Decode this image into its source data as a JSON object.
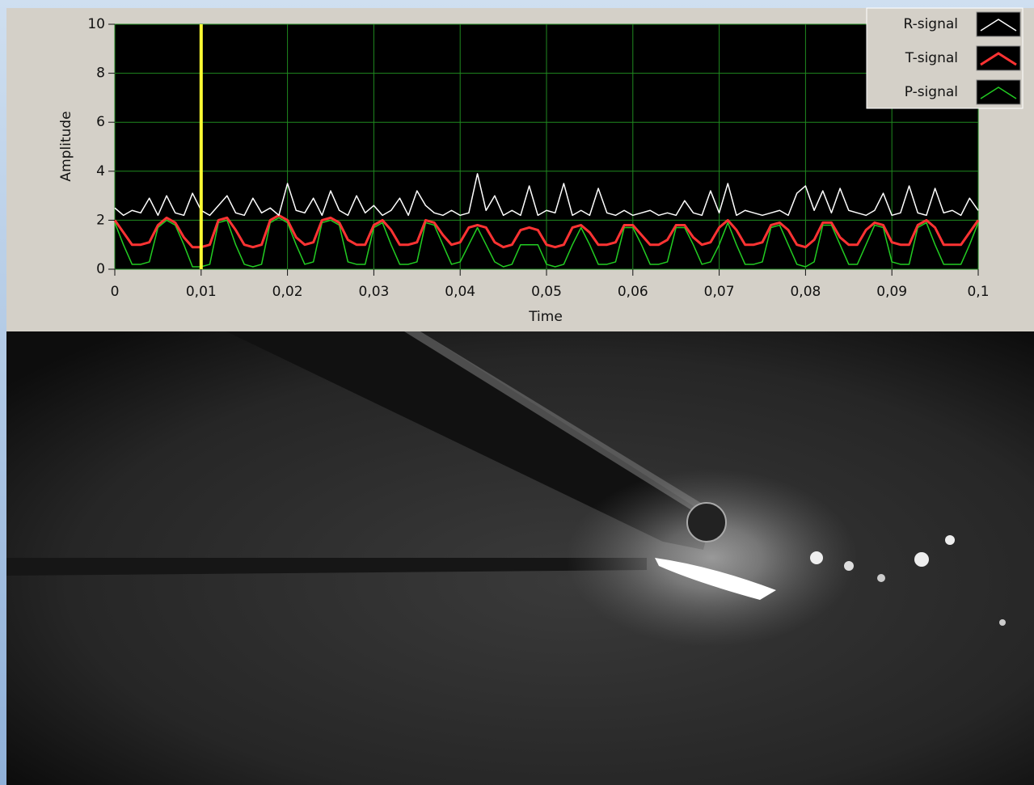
{
  "chart_data": {
    "type": "line",
    "xlabel": "Time",
    "ylabel": "Amplitude",
    "xlim": [
      0,
      0.1
    ],
    "ylim": [
      0,
      10
    ],
    "xticks": [
      0,
      {
        "value": 0.01,
        "label": "0,01"
      },
      {
        "value": 0.02,
        "label": "0,02"
      },
      {
        "value": 0.03,
        "label": "0,03"
      },
      {
        "value": 0.04,
        "label": "0,04"
      },
      {
        "value": 0.05,
        "label": "0,05"
      },
      {
        "value": 0.06,
        "label": "0,06"
      },
      {
        "value": 0.07,
        "label": "0,07"
      },
      {
        "value": 0.08,
        "label": "0,08"
      },
      {
        "value": 0.09,
        "label": "0,09"
      },
      {
        "value": 0.1,
        "label": "0,1"
      }
    ],
    "yticks": [
      0,
      2,
      4,
      6,
      8,
      10
    ],
    "grid": true,
    "background": "#000000",
    "grid_color": "#1f8a1f",
    "cursor_x": 0.01,
    "cursor_color": "#ffff33",
    "legend": "upper right",
    "x": [
      0,
      0.001,
      0.002,
      0.003,
      0.004,
      0.005,
      0.006,
      0.007,
      0.008,
      0.009,
      0.01,
      0.011,
      0.012,
      0.013,
      0.014,
      0.015,
      0.016,
      0.017,
      0.018,
      0.019,
      0.02,
      0.021,
      0.022,
      0.023,
      0.024,
      0.025,
      0.026,
      0.027,
      0.028,
      0.029,
      0.03,
      0.031,
      0.032,
      0.033,
      0.034,
      0.035,
      0.036,
      0.037,
      0.038,
      0.039,
      0.04,
      0.041,
      0.042,
      0.043,
      0.044,
      0.045,
      0.046,
      0.047,
      0.048,
      0.049,
      0.05,
      0.051,
      0.052,
      0.053,
      0.054,
      0.055,
      0.056,
      0.057,
      0.058,
      0.059,
      0.06,
      0.061,
      0.062,
      0.063,
      0.064,
      0.065,
      0.066,
      0.067,
      0.068,
      0.069,
      0.07,
      0.071,
      0.072,
      0.073,
      0.074,
      0.075,
      0.076,
      0.077,
      0.078,
      0.079,
      0.08,
      0.081,
      0.082,
      0.083,
      0.084,
      0.085,
      0.086,
      0.087,
      0.088,
      0.089,
      0.09,
      0.091,
      0.092,
      0.093,
      0.094,
      0.095,
      0.096,
      0.097,
      0.098,
      0.099,
      0.1
    ],
    "series": [
      {
        "name": "R-signal",
        "color": "#ffffff",
        "width": 1.5,
        "values": [
          2.5,
          2.2,
          2.4,
          2.3,
          2.9,
          2.2,
          3.0,
          2.3,
          2.2,
          3.1,
          2.4,
          2.2,
          2.6,
          3.0,
          2.3,
          2.2,
          2.9,
          2.3,
          2.5,
          2.2,
          3.5,
          2.4,
          2.3,
          2.9,
          2.2,
          3.2,
          2.4,
          2.2,
          3.0,
          2.3,
          2.6,
          2.2,
          2.4,
          2.9,
          2.2,
          3.2,
          2.6,
          2.3,
          2.2,
          2.4,
          2.2,
          2.3,
          3.9,
          2.4,
          3.0,
          2.2,
          2.4,
          2.2,
          3.4,
          2.2,
          2.4,
          2.3,
          3.5,
          2.2,
          2.4,
          2.2,
          3.3,
          2.3,
          2.2,
          2.4,
          2.2,
          2.3,
          2.4,
          2.2,
          2.3,
          2.2,
          2.8,
          2.3,
          2.2,
          3.2,
          2.3,
          3.5,
          2.2,
          2.4,
          2.3,
          2.2,
          2.3,
          2.4,
          2.2,
          3.1,
          3.4,
          2.4,
          3.2,
          2.3,
          3.3,
          2.4,
          2.3,
          2.2,
          2.4,
          3.1,
          2.2,
          2.3,
          3.4,
          2.3,
          2.2,
          3.3,
          2.3,
          2.4,
          2.2,
          2.9,
          2.4
        ]
      },
      {
        "name": "T-signal",
        "color": "#ff3333",
        "width": 3,
        "values": [
          2.0,
          1.5,
          1.0,
          1.0,
          1.1,
          1.8,
          2.1,
          1.9,
          1.3,
          0.9,
          0.9,
          1.0,
          2.0,
          2.1,
          1.6,
          1.0,
          0.9,
          1.0,
          2.0,
          2.2,
          2.0,
          1.3,
          1.0,
          1.1,
          2.0,
          2.1,
          1.9,
          1.2,
          1.0,
          1.0,
          1.8,
          2.0,
          1.6,
          1.0,
          1.0,
          1.1,
          2.0,
          1.9,
          1.4,
          1.0,
          1.1,
          1.7,
          1.8,
          1.7,
          1.1,
          0.9,
          1.0,
          1.6,
          1.7,
          1.6,
          1.0,
          0.9,
          1.0,
          1.7,
          1.8,
          1.5,
          1.0,
          1.0,
          1.1,
          1.8,
          1.8,
          1.4,
          1.0,
          1.0,
          1.2,
          1.8,
          1.8,
          1.3,
          1.0,
          1.1,
          1.7,
          2.0,
          1.6,
          1.0,
          1.0,
          1.1,
          1.8,
          1.9,
          1.6,
          1.0,
          0.9,
          1.2,
          1.9,
          1.9,
          1.3,
          1.0,
          1.0,
          1.6,
          1.9,
          1.8,
          1.1,
          1.0,
          1.0,
          1.8,
          2.0,
          1.7,
          1.0,
          1.0,
          1.0,
          1.5,
          2.0
        ]
      },
      {
        "name": "P-signal",
        "color": "#22cc22",
        "width": 1.5,
        "values": [
          1.9,
          1.0,
          0.2,
          0.2,
          0.3,
          1.7,
          2.0,
          1.8,
          1.0,
          0.1,
          0.1,
          0.2,
          1.9,
          2.0,
          1.0,
          0.2,
          0.1,
          0.2,
          1.9,
          2.1,
          1.9,
          1.0,
          0.2,
          0.3,
          1.9,
          2.0,
          1.8,
          0.3,
          0.2,
          0.2,
          1.7,
          1.9,
          1.0,
          0.2,
          0.2,
          0.3,
          1.9,
          1.8,
          1.0,
          0.2,
          0.3,
          1.0,
          1.7,
          1.0,
          0.3,
          0.1,
          0.2,
          1.0,
          1.0,
          1.0,
          0.2,
          0.1,
          0.2,
          1.0,
          1.7,
          1.0,
          0.2,
          0.2,
          0.3,
          1.7,
          1.7,
          1.0,
          0.2,
          0.2,
          0.3,
          1.7,
          1.7,
          1.0,
          0.2,
          0.3,
          1.0,
          1.9,
          1.0,
          0.2,
          0.2,
          0.3,
          1.7,
          1.8,
          1.0,
          0.2,
          0.1,
          0.3,
          1.8,
          1.8,
          1.0,
          0.2,
          0.2,
          1.0,
          1.8,
          1.7,
          0.3,
          0.2,
          0.2,
          1.7,
          1.9,
          1.0,
          0.2,
          0.2,
          0.2,
          1.0,
          1.9
        ]
      }
    ]
  }
}
